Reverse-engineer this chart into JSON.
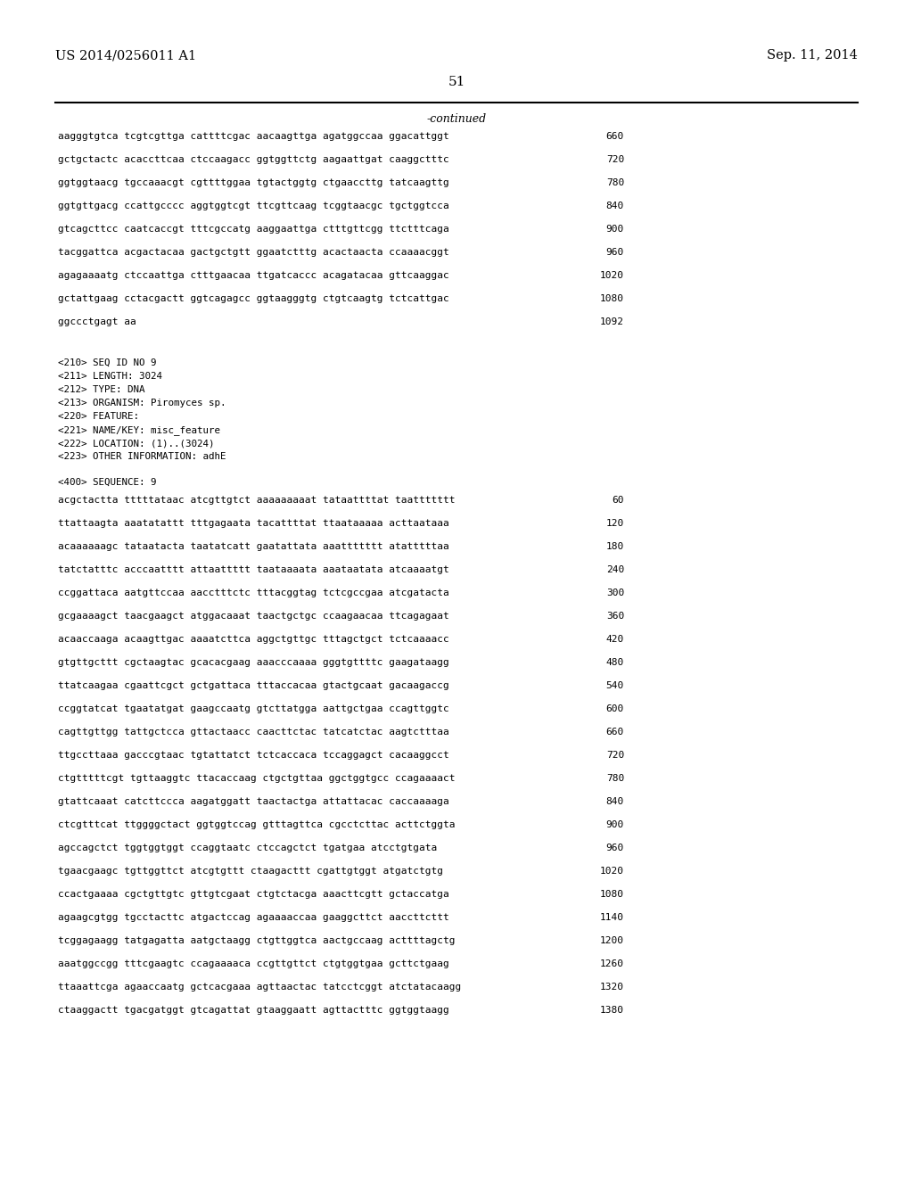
{
  "header_left": "US 2014/0256011 A1",
  "header_right": "Sep. 11, 2014",
  "page_number": "51",
  "continued_label": "-continued",
  "background_color": "#ffffff",
  "text_color": "#000000",
  "seq_lines_top": [
    [
      "aagggtgtca tcgtcgttga cattttcgac aacaagttga agatggccaa ggacattggt",
      "660"
    ],
    [
      "gctgctactc acaccttcaa ctccaagacc ggtggttctg aagaattgat caaggctttc",
      "720"
    ],
    [
      "ggtggtaacg tgccaaacgt cgttttggaa tgtactggtg ctgaaccttg tatcaagttg",
      "780"
    ],
    [
      "ggtgttgacg ccattgcccc aggtggtcgt ttcgttcaag tcggtaacgc tgctggtcca",
      "840"
    ],
    [
      "gtcagcttcc caatcaccgt tttcgccatg aaggaattga ctttgttcgg ttctttcaga",
      "900"
    ],
    [
      "tacggattca acgactacaa gactgctgtt ggaatctttg acactaacta ccaaaacggt",
      "960"
    ],
    [
      "agagaaaatg ctccaattga ctttgaacaa ttgatcaccc acagatacaa gttcaaggac",
      "1020"
    ],
    [
      "gctattgaag cctacgactt ggtcagagcc ggtaagggtg ctgtcaagtg tctcattgac",
      "1080"
    ],
    [
      "ggccctgagt aa",
      "1092"
    ]
  ],
  "metadata_lines": [
    "<210> SEQ ID NO 9",
    "<211> LENGTH: 3024",
    "<212> TYPE: DNA",
    "<213> ORGANISM: Piromyces sp.",
    "<220> FEATURE:",
    "<221> NAME/KEY: misc_feature",
    "<222> LOCATION: (1)..(3024)",
    "<223> OTHER INFORMATION: adhE"
  ],
  "seq400_header": "<400> SEQUENCE: 9",
  "seq_lines_bottom": [
    [
      "acgctactta tttttataac atcgttgtct aaaaaaaaat tataattttat taattttttt",
      "60"
    ],
    [
      "ttattaagta aaatatattt tttgagaata tacattttat ttaataaaaa acttaataaa",
      "120"
    ],
    [
      "acaaaaaagc tataatacta taatatcatt gaatattata aaattttttt atatttttaa",
      "180"
    ],
    [
      "tatctatttc acccaatttt attaattttt taataaaata aaataatata atcaaaatgt",
      "240"
    ],
    [
      "ccggattaca aatgttccaa aacctttctc tttacggtag tctcgccgaa atcgatacta",
      "300"
    ],
    [
      "gcgaaaagct taacgaagct atggacaaat taactgctgc ccaagaacaa ttcagagaat",
      "360"
    ],
    [
      "acaaccaaga acaagttgac aaaatcttca aggctgttgc tttagctgct tctcaaaacc",
      "420"
    ],
    [
      "gtgttgcttt cgctaagtac gcacacgaag aaacccaaaa gggtgttttc gaagataagg",
      "480"
    ],
    [
      "ttatcaagaa cgaattcgct gctgattaca tttaccacaa gtactgcaat gacaagaccg",
      "540"
    ],
    [
      "ccggtatcat tgaatatgat gaagccaatg gtcttatgga aattgctgaa ccagttggtc",
      "600"
    ],
    [
      "cagttgttgg tattgctcca gttactaacc caacttctac tatcatctac aagtctttaa",
      "660"
    ],
    [
      "ttgccttaaa gacccgtaac tgtattatct tctcaccaca tccaggagct cacaaggcct",
      "720"
    ],
    [
      "ctgtttttcgt tgttaaggtc ttacaccaag ctgctgttaa ggctggtgcc ccagaaaact",
      "780"
    ],
    [
      "gtattcaaat catcttccca aagatggatt taactactga attattacac caccaaaaga",
      "840"
    ],
    [
      "ctcgtttcat ttggggctact ggtggtccag gtttagttca cgcctcttac acttctggta",
      "900"
    ],
    [
      "agccagctct tggtggtggt ccaggtaatc ctccagctct tgatgaa atcctgtgata",
      "960"
    ],
    [
      "tgaacgaagc tgttggttct atcgtgttt ctaagacttt cgattgtggt atgatctgtg",
      "1020"
    ],
    [
      "ccactgaaaa cgctgttgtc gttgtcgaat ctgtctacga aaacttcgtt gctaccatga",
      "1080"
    ],
    [
      "agaagcgtgg tgcctacttc atgactccag agaaaaccaa gaaggcttct aaccttcttt",
      "1140"
    ],
    [
      "tcggagaagg tatgagatta aatgctaagg ctgttggtca aactgccaag acttttagctg",
      "1200"
    ],
    [
      "aaatggccgg tttcgaagtc ccagaaaaca ccgttgttct ctgtggtgaa gcttctgaag",
      "1260"
    ],
    [
      "ttaaattcga agaaccaatg gctcacgaaa agttaactac tatcctcggt atctatacaagg",
      "1320"
    ],
    [
      "ctaaggactt tgacgatggt gtcagattat gtaaggaatt agttactttc ggtggtaagg",
      "1380"
    ]
  ]
}
